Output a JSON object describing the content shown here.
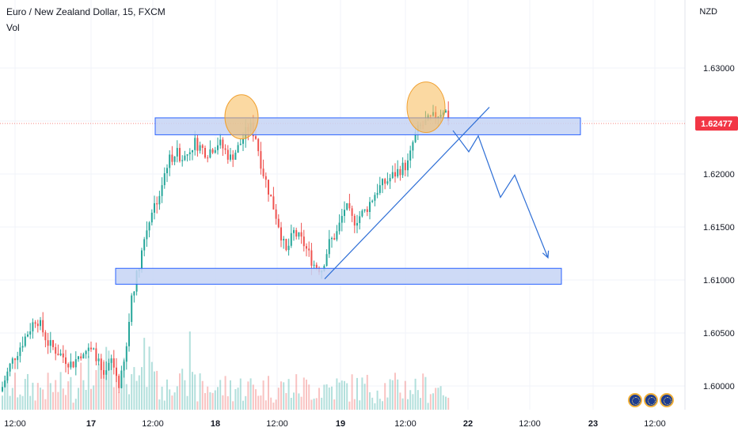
{
  "header": {
    "symbol_title": "Euro / New Zealand Dollar, 15, FXCM",
    "volume_label": "Vol"
  },
  "price_axis": {
    "currency": "NZD",
    "ticks": [
      "1.63000",
      "1.62500",
      "1.62000",
      "1.61500",
      "1.61000",
      "1.60500",
      "1.60000"
    ],
    "current_price_label": "1.62477",
    "current_price_color": "#f23645"
  },
  "time_axis": {
    "ticks": [
      "12:00",
      "17",
      "12:00",
      "18",
      "12:00",
      "19",
      "12:00",
      "22",
      "12:00",
      "23",
      "12:00"
    ]
  },
  "colors": {
    "up": "#26a69a",
    "down": "#ef5350",
    "zone_fill": "#c5d3f5",
    "zone_stroke": "#2962ff",
    "drawing": "#2f6fd6",
    "highlight": "#f7b955"
  },
  "chart_data": {
    "type": "candlestick",
    "ylim": [
      1.5975,
      1.6345
    ],
    "current_price": 1.62477,
    "y_ticks": [
      1.63,
      1.625,
      1.62,
      1.615,
      1.61,
      1.605,
      1.6
    ],
    "x_ticks": [
      "12:00",
      "17",
      "12:00",
      "18",
      "12:00",
      "19",
      "12:00",
      "22",
      "12:00",
      "23",
      "12:00"
    ],
    "close_path": [
      [
        0,
        1.5995
      ],
      [
        12,
        1.602
      ],
      [
        30,
        1.6045
      ],
      [
        45,
        1.6065
      ],
      [
        60,
        1.604
      ],
      [
        75,
        1.603
      ],
      [
        90,
        1.602
      ],
      [
        105,
        1.6035
      ],
      [
        120,
        1.603
      ],
      [
        130,
        1.6005
      ],
      [
        140,
        1.6025
      ],
      [
        150,
        1.6
      ],
      [
        158,
        1.603
      ],
      [
        165,
        1.6085
      ],
      [
        172,
        1.6105
      ],
      [
        180,
        1.6135
      ],
      [
        190,
        1.6165
      ],
      [
        200,
        1.618
      ],
      [
        210,
        1.621
      ],
      [
        220,
        1.622
      ],
      [
        232,
        1.6215
      ],
      [
        245,
        1.623
      ],
      [
        260,
        1.622
      ],
      [
        275,
        1.623
      ],
      [
        290,
        1.6215
      ],
      [
        300,
        1.6225
      ],
      [
        310,
        1.624
      ],
      [
        315,
        1.6245
      ],
      [
        322,
        1.6235
      ],
      [
        330,
        1.6205
      ],
      [
        340,
        1.618
      ],
      [
        350,
        1.6155
      ],
      [
        360,
        1.6125
      ],
      [
        370,
        1.6145
      ],
      [
        382,
        1.6135
      ],
      [
        395,
        1.6115
      ],
      [
        405,
        1.611
      ],
      [
        415,
        1.6135
      ],
      [
        425,
        1.6145
      ],
      [
        435,
        1.617
      ],
      [
        445,
        1.6155
      ],
      [
        460,
        1.6165
      ],
      [
        475,
        1.6185
      ],
      [
        490,
        1.6195
      ],
      [
        505,
        1.6205
      ],
      [
        515,
        1.621
      ],
      [
        522,
        1.6235
      ],
      [
        530,
        1.6245
      ],
      [
        540,
        1.625
      ],
      [
        550,
        1.6255
      ],
      [
        560,
        1.6262
      ],
      [
        568,
        1.62477
      ]
    ],
    "zones": [
      {
        "name": "resistance",
        "top": 1.6253,
        "bottom": 1.6237
      },
      {
        "name": "support",
        "top": 1.6111,
        "bottom": 1.6096
      }
    ],
    "trendline": [
      [
        410,
        1.6101
      ],
      [
        618,
        1.6263
      ]
    ],
    "projection": [
      [
        572,
        1.6241
      ],
      [
        592,
        1.6221
      ],
      [
        604,
        1.6236
      ],
      [
        632,
        1.6178
      ],
      [
        650,
        1.6199
      ],
      [
        692,
        1.6121
      ]
    ],
    "highlights": [
      {
        "x": 305,
        "price": 1.6254
      },
      {
        "x": 538,
        "price": 1.6263
      }
    ]
  }
}
